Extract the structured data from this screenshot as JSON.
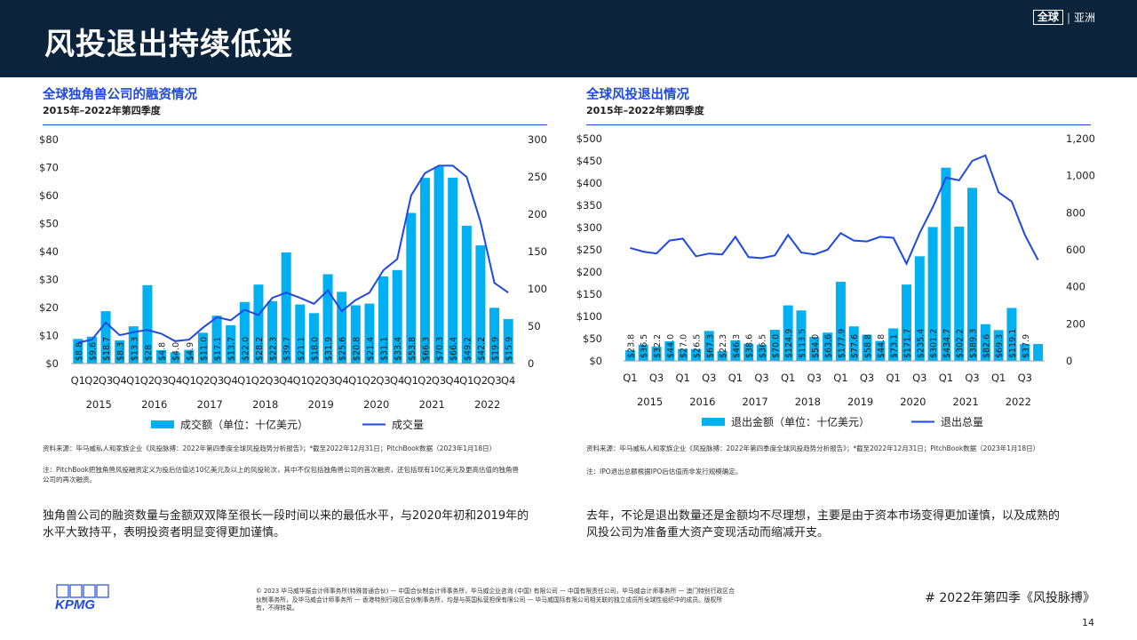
{
  "header": {
    "title": "风投退出持续低迷",
    "region": {
      "global": "全球",
      "asia": "亚洲"
    }
  },
  "charts": {
    "left": {
      "title": "全球独角兽公司的融资情况",
      "subtitle": "2015年–2022年第四季度",
      "source": "资料来源：毕马威私人和家族企业《风投脉搏：2022年第四季度全球风投趋势分析报告》；*截至2022年12月31日；PitchBook数据（2023年1月18日）",
      "note_lines": [
        "注：PitchBook把独角兽风投融资定义为投后估值达10亿美元及以上的风投轮次，其中不仅包括独角兽公司的首次融资，还包括现有10亿美元及更高估值的独角兽",
        "公司的再次融资。"
      ],
      "description": [
        "独角兽公司的融资数量与金额双双降至很长一段时间以来的最低水平，与2020年初和2019年的",
        "水平大致持平，表明投资者明显变得更加谨慎。"
      ]
    },
    "right": {
      "title": "全球风投退出情况",
      "subtitle": "2015年–2022年第四季度",
      "source": "资料来源：毕马威私人和家族企业《风投脉搏：2022年第四季度全球风投趋势分析报告》；*截至2022年12月31日；PitchBook数据（2023年1月18日）",
      "note_lines": [
        "注：IPO退出总额根据IPO后估值而非发行规模确定。"
      ],
      "description": [
        "去年，不论是退出数量还是金额均不尽理想，主要是由于资本市场变得更加谨慎，以及成熟的",
        "风投公司为准备重大资产变现活动而缩减开支。"
      ]
    }
  },
  "chart_data": [
    {
      "type": "bar",
      "bar_color": "#00b0f0",
      "line_color": "#1e49e2",
      "categories": [
        "Q1",
        "Q2",
        "Q3",
        "Q4",
        "Q1",
        "Q2",
        "Q3",
        "Q4",
        "Q1",
        "Q2",
        "Q3",
        "Q4",
        "Q1",
        "Q2",
        "Q3",
        "Q4",
        "Q1",
        "Q2",
        "Q3",
        "Q4",
        "Q1",
        "Q2",
        "Q3",
        "Q4",
        "Q1",
        "Q2",
        "Q3",
        "Q4",
        "Q1",
        "Q2",
        "Q3",
        "Q4"
      ],
      "years": [
        "2015",
        "2016",
        "2017",
        "2018",
        "2019",
        "2020",
        "2021",
        "2022"
      ],
      "series": [
        {
          "name": "成交额（单位：十亿美元）",
          "axis": "left",
          "values": [
            8.8,
            9.6,
            18.7,
            8.3,
            13.3,
            28.0,
            4.8,
            4.0,
            4.9,
            11.0,
            17.1,
            13.7,
            22.0,
            28.2,
            22.3,
            39.7,
            21.1,
            18.0,
            31.9,
            25.6,
            20.8,
            21.4,
            31.1,
            33.4,
            53.8,
            66.3,
            70.3,
            66.4,
            49.2,
            42.2,
            19.9,
            15.9
          ],
          "labels": [
            "$8.8",
            "$9.6",
            "$18.7",
            "$8.3",
            "$13.3",
            "$28",
            "$4.8",
            "$4.0",
            "$4.9",
            "$11.0",
            "$17.1",
            "$13.7",
            "$22.0",
            "$28.2",
            "$22.3",
            "$39.7",
            "$21.1",
            "$18.0",
            "$31.9",
            "$25.6",
            "$20.8",
            "$21.4",
            "$31.1",
            "$33.4",
            "$53.8",
            "$66.3",
            "$70.3",
            "$66.4",
            "$49.2",
            "$42.2",
            "$19.9",
            "$15.9"
          ]
        },
        {
          "name": "成交量",
          "axis": "right",
          "values": [
            28,
            32,
            55,
            38,
            42,
            45,
            40,
            30,
            32,
            48,
            62,
            58,
            72,
            65,
            88,
            95,
            88,
            80,
            98,
            70,
            85,
            95,
            125,
            140,
            225,
            255,
            265,
            265,
            250,
            190,
            108,
            95
          ]
        }
      ],
      "y_left": {
        "min": 0,
        "max": 80,
        "ticks": [
          "$0",
          "$10",
          "$20",
          "$30",
          "$40",
          "$50",
          "$60",
          "$70",
          "$80"
        ]
      },
      "y_right": {
        "min": 0,
        "max": 300,
        "ticks": [
          "0",
          "50",
          "100",
          "150",
          "200",
          "250",
          "300"
        ]
      },
      "legend": "bottom"
    },
    {
      "type": "bar",
      "bar_color": "#00b0f0",
      "line_color": "#1e49e2",
      "categories": [
        "Q1",
        "",
        "Q3",
        "",
        "Q1",
        "",
        "Q3",
        "",
        "Q1",
        "",
        "Q3",
        "",
        "Q1",
        "",
        "Q3",
        "",
        "Q1",
        "",
        "Q3",
        "",
        "Q1",
        "",
        "Q3",
        "",
        "Q1",
        "",
        "Q3",
        "",
        "Q1",
        "",
        "Q3",
        ""
      ],
      "years": [
        "2015",
        "2016",
        "2017",
        "2018",
        "2019",
        "2020",
        "2021",
        "2022"
      ],
      "series": [
        {
          "name": "退出金额（单位：十亿美元）",
          "axis": "left",
          "values": [
            23.8,
            36.5,
            32.2,
            44.0,
            27.0,
            26.5,
            67.3,
            22.3,
            46.3,
            38.6,
            36.5,
            70.0,
            124.9,
            113.5,
            54.0,
            63.6,
            177.9,
            77.6,
            58.8,
            44.8,
            73.1,
            171.7,
            235.4,
            301.2,
            434.7,
            302.2,
            389.3,
            82.6,
            69.3,
            119.1,
            37.9,
            37.9
          ],
          "labels": [
            "$23.8",
            "$36.5",
            "$32.2",
            "$44.0",
            "$27.0",
            "$26.5",
            "$67.3",
            "$22.3",
            "$46.3",
            "$38.6",
            "$36.5",
            "$70.0",
            "$124.9",
            "$113.5",
            "$54.0",
            "$63.6",
            "$177.9",
            "$77.6",
            "$58.8",
            "$44.8",
            "$73.1",
            "$171.7",
            "$235.4",
            "$301.2",
            "$434.7",
            "$302.2",
            "$389.3",
            "$82.6",
            "$69.3",
            "$119.1",
            "$37.9",
            ""
          ]
        },
        {
          "name": "退出总量",
          "axis": "right",
          "values": [
            610,
            590,
            580,
            650,
            660,
            565,
            580,
            575,
            670,
            560,
            555,
            570,
            680,
            585,
            575,
            600,
            690,
            650,
            645,
            670,
            665,
            525,
            690,
            830,
            990,
            975,
            1080,
            1110,
            910,
            860,
            680,
            545
          ]
        }
      ],
      "y_left": {
        "min": 0,
        "max": 500,
        "ticks": [
          "$0",
          "$50",
          "$100",
          "$150",
          "$200",
          "$250",
          "$300",
          "$350",
          "$400",
          "$450",
          "$500"
        ]
      },
      "y_right": {
        "min": 0,
        "max": 1200,
        "ticks": [
          "0",
          "200",
          "400",
          "600",
          "800",
          "1,000",
          "1,200"
        ]
      },
      "legend": "bottom"
    }
  ],
  "footer": {
    "logo": "KPMG",
    "copyright_lines": [
      "© 2023 毕马威华振会计师事务所(特殊普通合伙) — 中国合伙制会计师事务所，毕马威企业咨询 (中国) 有限公司 — 中国有限责任公司，毕马威会计师事务所 — 澳门特别行政区合",
      "伙制事务所，及毕马威会计师事务所 — 香港特别行政区合伙制事务所，均是与英国私营担保有限公司 — 毕马威国际有限公司相关联的独立成员所全球性组织中的成员。版权所",
      "有，不得转载。"
    ],
    "hashtag": "# 2022年第四季《风投脉搏》",
    "page": "14"
  }
}
